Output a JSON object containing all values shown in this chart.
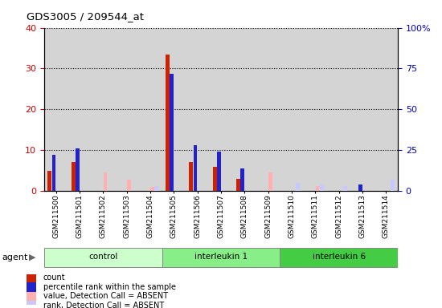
{
  "title": "GDS3005 / 209544_at",
  "samples": [
    "GSM211500",
    "GSM211501",
    "GSM211502",
    "GSM211503",
    "GSM211504",
    "GSM211505",
    "GSM211506",
    "GSM211507",
    "GSM211508",
    "GSM211509",
    "GSM211510",
    "GSM211511",
    "GSM211512",
    "GSM211513",
    "GSM211514"
  ],
  "groups": [
    {
      "name": "control",
      "start": 0,
      "end": 5,
      "color": "#ccffcc"
    },
    {
      "name": "interleukin 1",
      "start": 5,
      "end": 10,
      "color": "#88ee88"
    },
    {
      "name": "interleukin 6",
      "start": 10,
      "end": 15,
      "color": "#44cc44"
    }
  ],
  "count_values": [
    5.0,
    7.0,
    0,
    0,
    0,
    33.5,
    7.0,
    6.0,
    3.0,
    0,
    0,
    0,
    0,
    0,
    0
  ],
  "rank_values": [
    22,
    26,
    0,
    0,
    0,
    72,
    28,
    24,
    14,
    0,
    0,
    0,
    0,
    4,
    0
  ],
  "absent_count": [
    0,
    0,
    4.5,
    2.8,
    1.0,
    0,
    0,
    0,
    0,
    4.5,
    0,
    1.2,
    0,
    0,
    0
  ],
  "absent_rank": [
    0,
    0,
    0,
    0,
    3.0,
    0,
    0,
    0,
    0,
    0,
    5.0,
    4.0,
    3.0,
    0,
    7.0
  ],
  "ylim_left": [
    0,
    40
  ],
  "ylim_right": [
    0,
    100
  ],
  "left_ticks": [
    0,
    10,
    20,
    30,
    40
  ],
  "right_ticks": [
    0,
    25,
    50,
    75,
    100
  ],
  "left_color": "#cc0000",
  "right_color": "#0000cc",
  "bar_width": 0.18,
  "bg_color": "#d4d4d4",
  "legend_items": [
    {
      "color": "#cc2200",
      "label": "count"
    },
    {
      "color": "#2222cc",
      "label": "percentile rank within the sample"
    },
    {
      "color": "#ffb0b0",
      "label": "value, Detection Call = ABSENT"
    },
    {
      "color": "#c8c8ff",
      "label": "rank, Detection Call = ABSENT"
    }
  ]
}
